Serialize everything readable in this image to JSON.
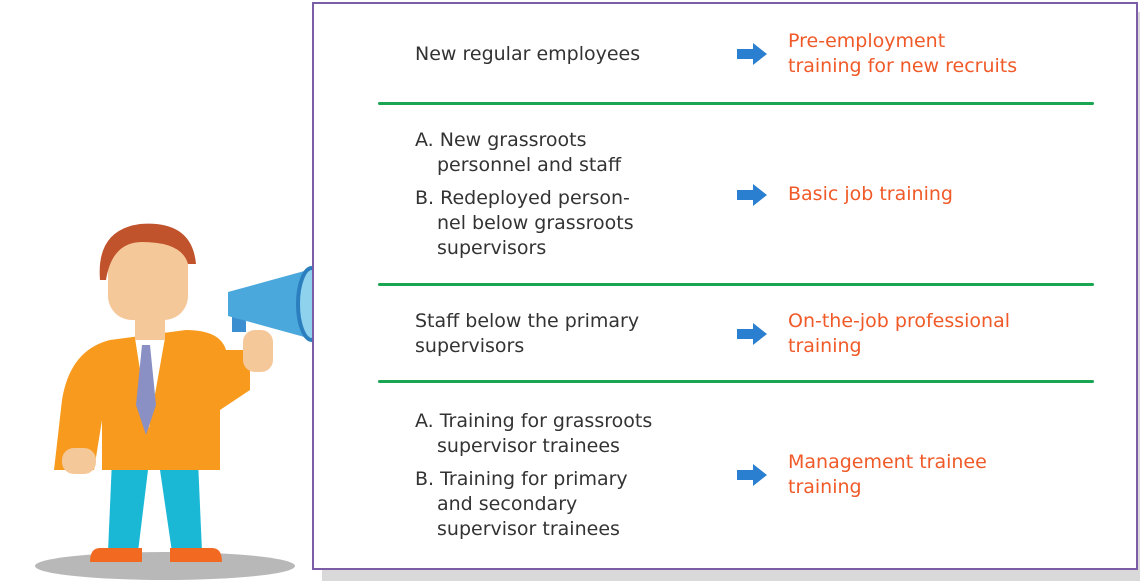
{
  "rows": [
    {
      "items": [
        "New regular employees"
      ],
      "target": "Pre-employment\ntraining for new recruits"
    },
    {
      "items": [
        "A. New grassroots\npersonnel and staff",
        "B. Redeployed person-\nnel below grassroots\nsupervisors"
      ],
      "target": "Basic job training"
    },
    {
      "items": [
        "Staff below the primary\nsupervisors"
      ],
      "target": "On-the-job professional\ntraining"
    },
    {
      "items": [
        "A. Training for grassroots\nsupervisor trainees",
        "B. Training for primary\nand secondary\nsupervisor trainees"
      ],
      "target": "Management trainee\ntraining"
    }
  ]
}
